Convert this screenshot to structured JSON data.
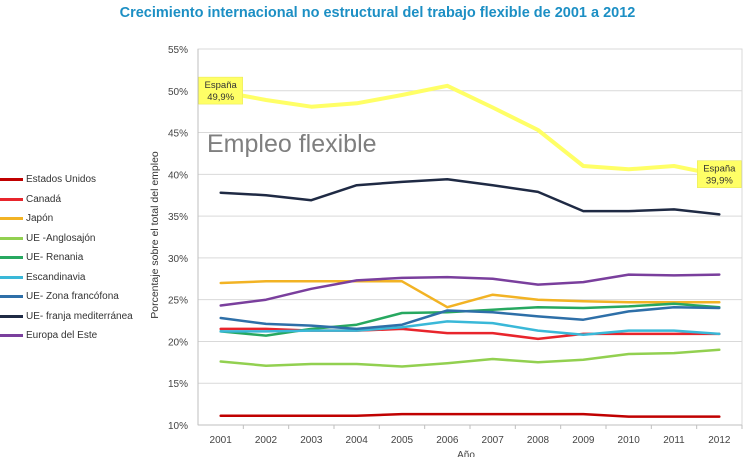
{
  "chart_data": {
    "type": "line",
    "title": "Crecimiento internacional no estructural del trabajo flexible de 2001 a 2012",
    "inner_title": "Empleo flexible",
    "xlabel": "Año",
    "ylabel": "Porcentaje sobre el total del empleo",
    "ylim": [
      10,
      55
    ],
    "grid": true,
    "legend": "left",
    "x": [
      "2001",
      "2002",
      "2003",
      "2004",
      "2005",
      "2006",
      "2007",
      "2008",
      "2009",
      "2010",
      "2011",
      "2012"
    ],
    "y_ticks": [
      {
        "value": 10,
        "label": "10%"
      },
      {
        "value": 15,
        "label": "15%"
      },
      {
        "value": 20,
        "label": "20%"
      },
      {
        "value": 25,
        "label": "25%"
      },
      {
        "value": 30,
        "label": "30%"
      },
      {
        "value": 35,
        "label": "35%"
      },
      {
        "value": 40,
        "label": "40%"
      },
      {
        "value": 45,
        "label": "45%"
      },
      {
        "value": 50,
        "label": "50%"
      },
      {
        "value": 55,
        "label": "55%"
      }
    ],
    "series": [
      {
        "name": "Estados Unidos",
        "color": "#c00000",
        "values": [
          11.1,
          11.1,
          11.1,
          11.1,
          11.3,
          11.3,
          11.3,
          11.3,
          11.3,
          11.0,
          11.0,
          11.0
        ]
      },
      {
        "name": "Canadá",
        "color": "#e8252c",
        "values": [
          21.5,
          21.5,
          21.3,
          21.3,
          21.5,
          21.0,
          21.0,
          20.3,
          20.9,
          20.9,
          20.9,
          20.9
        ]
      },
      {
        "name": "Japón",
        "color": "#f2b324",
        "values": [
          27.0,
          27.2,
          27.2,
          27.2,
          27.2,
          24.1,
          25.6,
          25.0,
          24.8,
          24.7,
          24.7,
          24.7
        ]
      },
      {
        "name": "UE -Anglosajón",
        "color": "#92d050",
        "values": [
          17.6,
          17.1,
          17.3,
          17.3,
          17.0,
          17.4,
          17.9,
          17.5,
          17.8,
          18.5,
          18.6,
          19.0
        ]
      },
      {
        "name": "UE- Renania",
        "color": "#27a860",
        "values": [
          21.2,
          20.7,
          21.5,
          22.0,
          23.4,
          23.5,
          23.8,
          24.1,
          24.0,
          24.2,
          24.5,
          24.1
        ]
      },
      {
        "name": "Escandinavia",
        "color": "#3ab8d8",
        "values": [
          21.2,
          21.2,
          21.3,
          21.3,
          21.7,
          22.4,
          22.2,
          21.3,
          20.8,
          21.3,
          21.3,
          20.9
        ]
      },
      {
        "name": "UE- Zona francófona",
        "color": "#2e6fa8",
        "values": [
          22.8,
          22.1,
          21.9,
          21.5,
          22.0,
          23.7,
          23.5,
          23.0,
          22.6,
          23.6,
          24.1,
          24.0
        ]
      },
      {
        "name": "UE- franja mediterránea",
        "color": "#1f2a44",
        "values": [
          37.8,
          37.5,
          36.9,
          38.7,
          39.1,
          39.4,
          38.7,
          37.9,
          35.6,
          35.6,
          35.8,
          35.2
        ]
      },
      {
        "name": "Europa del Este",
        "color": "#7a3f9d",
        "values": [
          24.3,
          25.0,
          26.3,
          27.3,
          27.6,
          27.7,
          27.5,
          26.8,
          27.1,
          28.0,
          27.9,
          28.0
        ]
      },
      {
        "name": "España",
        "color": "#ffff66",
        "values": [
          49.9,
          48.9,
          48.1,
          48.5,
          49.5,
          50.6,
          48.0,
          45.3,
          41.0,
          40.6,
          41.0,
          39.9
        ]
      }
    ],
    "annotations": [
      {
        "series": "España",
        "x": "2001",
        "lines": [
          "España",
          "49,9%"
        ]
      },
      {
        "series": "España",
        "x": "2012",
        "lines": [
          "España",
          "39,9%"
        ]
      }
    ]
  }
}
